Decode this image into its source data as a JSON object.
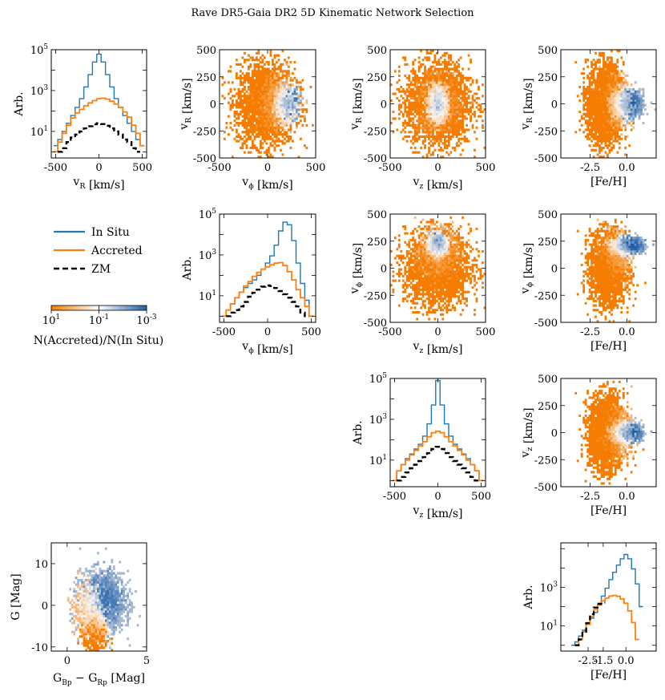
{
  "figure_title": "Rave DR5-Gaia DR2 5D Kinematic Network Selection",
  "colors": {
    "in_situ": "#1f77b4",
    "accreted": "#ff7f0e",
    "zm": "#000000",
    "colormap": [
      "#f57c00",
      "#ffffff",
      "#1f5fa8"
    ]
  },
  "legend": {
    "items": [
      {
        "label": "In Situ",
        "style": "in_situ"
      },
      {
        "label": "Accreted",
        "style": "accreted"
      },
      {
        "label": "ZM",
        "style": "zm"
      }
    ]
  },
  "colorbar": {
    "tick_labels": [
      "10^1",
      "10^-1",
      "10^-3"
    ],
    "tick_display": [
      {
        "base": "10",
        "exp": "1"
      },
      {
        "base": "10",
        "exp": "-1"
      },
      {
        "base": "10",
        "exp": "-3"
      }
    ],
    "label": "N(Accreted)/N(In Situ)"
  },
  "chart_data": [
    {
      "id": "hist_vR",
      "type": "histogram",
      "xlabel": "v_R [km/s]",
      "ylabel": "Arb.",
      "yscale": "log",
      "xlim": [
        -550,
        550
      ],
      "ylim": [
        0.5,
        100000
      ],
      "xticks": [
        -500,
        0,
        500
      ],
      "xtick_labels": [
        "-500",
        "0",
        "500"
      ],
      "ytick_labels": [
        "10^1",
        "10^3",
        "10^5"
      ],
      "series": [
        {
          "name": "In Situ",
          "x": [
            -500,
            -450,
            -400,
            -350,
            -300,
            -250,
            -200,
            -150,
            -100,
            -50,
            0,
            50,
            100,
            150,
            200,
            250,
            300,
            350,
            400,
            450,
            500
          ],
          "values": [
            2,
            4,
            10,
            25,
            60,
            150,
            400,
            1500,
            6000,
            25000,
            60000,
            25000,
            6000,
            1500,
            400,
            150,
            60,
            25,
            10,
            4,
            2
          ]
        },
        {
          "name": "Accreted",
          "x": [
            -500,
            -450,
            -400,
            -350,
            -300,
            -250,
            -200,
            -150,
            -100,
            -50,
            0,
            50,
            100,
            150,
            200,
            250,
            300,
            350,
            400,
            450,
            500
          ],
          "values": [
            1,
            3,
            8,
            20,
            45,
            80,
            120,
            180,
            250,
            320,
            400,
            420,
            380,
            300,
            220,
            150,
            90,
            50,
            20,
            8,
            2
          ]
        },
        {
          "name": "ZM",
          "x": [
            -450,
            -400,
            -350,
            -300,
            -250,
            -200,
            -150,
            -100,
            -50,
            0,
            50,
            100,
            150,
            200,
            250,
            300,
            350,
            400,
            450
          ],
          "values": [
            1,
            1.5,
            3,
            5,
            7,
            10,
            14,
            18,
            22,
            25,
            23,
            19,
            14,
            10,
            7,
            4,
            3,
            1.5,
            1
          ]
        }
      ]
    },
    {
      "id": "scatter_vR_vphi",
      "type": "heatmap",
      "xlabel": "v_phi [km/s]",
      "ylabel": "v_R [km/s]",
      "xlim": [
        -500,
        500
      ],
      "ylim": [
        -500,
        500
      ],
      "xtick_labels": [
        "-500",
        "0",
        "500"
      ],
      "ytick_labels": [
        "-500",
        "-250",
        "0",
        "250",
        "500"
      ],
      "clusters": [
        {
          "population": "accreted",
          "cx": -20,
          "cy": 0,
          "sx": 150,
          "sy": 190,
          "n": 900
        },
        {
          "population": "in_situ",
          "cx": 200,
          "cy": 0,
          "sx": 55,
          "sy": 70,
          "n": 600
        },
        {
          "population": "mixed",
          "cx": 80,
          "cy": 0,
          "sx": 90,
          "sy": 110,
          "n": 300
        }
      ]
    },
    {
      "id": "scatter_vR_vz",
      "type": "heatmap",
      "xlabel": "v_z [km/s]",
      "ylabel": "v_R [km/s]",
      "xlim": [
        -500,
        500
      ],
      "ylim": [
        -500,
        500
      ],
      "xtick_labels": [
        "-500",
        "0",
        "500"
      ],
      "ytick_labels": [
        "-500",
        "-250",
        "0",
        "250",
        "500"
      ],
      "clusters": [
        {
          "population": "accreted",
          "cx": 0,
          "cy": 0,
          "sx": 170,
          "sy": 190,
          "n": 900
        },
        {
          "population": "in_situ",
          "cx": 0,
          "cy": 0,
          "sx": 45,
          "sy": 70,
          "n": 600
        },
        {
          "population": "mixed",
          "cx": 0,
          "cy": 0,
          "sx": 100,
          "sy": 120,
          "n": 300
        }
      ]
    },
    {
      "id": "scatter_vR_feh",
      "type": "heatmap",
      "xlabel": "[Fe/H]",
      "ylabel": "v_R [km/s]",
      "xlim": [
        -4.5,
        2.0
      ],
      "ylim": [
        -500,
        500
      ],
      "xticks": [
        -2.5,
        0.0
      ],
      "xtick_labels": [
        "-2.5",
        "0.0"
      ],
      "ytick_labels": [
        "-500",
        "-250",
        "0",
        "250",
        "500"
      ],
      "clusters": [
        {
          "population": "accreted",
          "cx": -1.5,
          "cy": 0,
          "sx": 0.6,
          "sy": 180,
          "n": 900
        },
        {
          "population": "in_situ",
          "cx": 0.0,
          "cy": 0,
          "sx": 0.45,
          "sy": 60,
          "n": 600
        },
        {
          "population": "mixed",
          "cx": -0.7,
          "cy": 0,
          "sx": 0.5,
          "sy": 110,
          "n": 300
        }
      ]
    },
    {
      "id": "hist_vphi",
      "type": "histogram",
      "xlabel": "v_phi [km/s]",
      "ylabel": "Arb.",
      "yscale": "log",
      "xlim": [
        -550,
        550
      ],
      "ylim": [
        0.5,
        100000
      ],
      "xticks": [
        -500,
        0,
        500
      ],
      "xtick_labels": [
        "-500",
        "0",
        "500"
      ],
      "ytick_labels": [
        "10^1",
        "10^3",
        "10^5"
      ],
      "series": [
        {
          "name": "In Situ",
          "x": [
            -500,
            -450,
            -400,
            -350,
            -300,
            -250,
            -200,
            -150,
            -100,
            -50,
            0,
            50,
            100,
            150,
            200,
            250,
            300,
            350,
            400,
            450,
            500
          ],
          "values": [
            1,
            2,
            4,
            8,
            15,
            25,
            40,
            60,
            100,
            200,
            400,
            900,
            3000,
            15000,
            40000,
            30000,
            5000,
            400,
            40,
            6,
            1
          ]
        },
        {
          "name": "Accreted",
          "x": [
            -500,
            -450,
            -400,
            -350,
            -300,
            -250,
            -200,
            -150,
            -100,
            -50,
            0,
            50,
            100,
            150,
            200,
            250,
            300,
            350,
            400,
            450,
            500
          ],
          "values": [
            1,
            2,
            4,
            8,
            15,
            30,
            50,
            90,
            140,
            200,
            260,
            330,
            400,
            420,
            300,
            150,
            60,
            20,
            8,
            3,
            1
          ]
        },
        {
          "name": "ZM",
          "x": [
            -450,
            -400,
            -350,
            -300,
            -250,
            -200,
            -150,
            -100,
            -50,
            0,
            50,
            100,
            150,
            200,
            250,
            300,
            350,
            400,
            450
          ],
          "values": [
            1,
            1.5,
            2,
            3,
            5,
            9,
            14,
            20,
            28,
            32,
            30,
            24,
            17,
            12,
            8,
            5,
            3,
            1.5,
            1
          ]
        }
      ]
    },
    {
      "id": "scatter_vphi_vz",
      "type": "heatmap",
      "xlabel": "v_z [km/s]",
      "ylabel": "v_phi [km/s]",
      "xlim": [
        -500,
        500
      ],
      "ylim": [
        -500,
        500
      ],
      "xtick_labels": [
        "-500",
        "0",
        "500"
      ],
      "ytick_labels": [
        "-500",
        "-250",
        "0",
        "250",
        "500"
      ],
      "clusters": [
        {
          "population": "accreted",
          "cx": 0,
          "cy": 0,
          "sx": 170,
          "sy": 170,
          "n": 900
        },
        {
          "population": "in_situ",
          "cx": 0,
          "cy": 220,
          "sx": 45,
          "sy": 45,
          "n": 600
        },
        {
          "population": "mixed",
          "cx": 0,
          "cy": 120,
          "sx": 100,
          "sy": 110,
          "n": 300
        }
      ]
    },
    {
      "id": "scatter_vphi_feh",
      "type": "heatmap",
      "xlabel": "[Fe/H]",
      "ylabel": "v_phi [km/s]",
      "xlim": [
        -4.5,
        2.0
      ],
      "ylim": [
        -500,
        500
      ],
      "xticks": [
        -2.5,
        0.0
      ],
      "xtick_labels": [
        "-2.5",
        "0.0"
      ],
      "ytick_labels": [
        "-500",
        "-250",
        "0",
        "250",
        "500"
      ],
      "clusters": [
        {
          "population": "accreted",
          "cx": -1.3,
          "cy": 0,
          "sx": 0.6,
          "sy": 160,
          "n": 900
        },
        {
          "population": "in_situ",
          "cx": 0.0,
          "cy": 210,
          "sx": 0.5,
          "sy": 35,
          "n": 600
        },
        {
          "population": "mixed",
          "cx": -0.8,
          "cy": 120,
          "sx": 0.5,
          "sy": 100,
          "n": 300
        }
      ]
    },
    {
      "id": "hist_vz",
      "type": "histogram",
      "xlabel": "v_z [km/s]",
      "ylabel": "Arb.",
      "yscale": "log",
      "xlim": [
        -550,
        550
      ],
      "ylim": [
        0.5,
        100000
      ],
      "xticks": [
        -500,
        0,
        500
      ],
      "xtick_labels": [
        "-500",
        "0",
        "500"
      ],
      "ytick_labels": [
        "10^1",
        "10^3",
        "10^5"
      ],
      "series": [
        {
          "name": "In Situ",
          "x": [
            -500,
            -450,
            -400,
            -350,
            -300,
            -250,
            -200,
            -150,
            -100,
            -50,
            0,
            50,
            100,
            150,
            200,
            250,
            300,
            350,
            400,
            450,
            500
          ],
          "values": [
            1,
            3,
            6,
            12,
            20,
            35,
            60,
            150,
            600,
            5000,
            80000,
            5000,
            600,
            150,
            60,
            35,
            20,
            12,
            6,
            3,
            1
          ]
        },
        {
          "name": "Accreted",
          "x": [
            -500,
            -450,
            -400,
            -350,
            -300,
            -250,
            -200,
            -150,
            -100,
            -50,
            0,
            50,
            100,
            150,
            200,
            250,
            300,
            350,
            400,
            450,
            500
          ],
          "values": [
            1,
            3,
            6,
            10,
            18,
            30,
            50,
            80,
            140,
            220,
            260,
            220,
            140,
            80,
            50,
            30,
            18,
            10,
            6,
            3,
            1
          ]
        },
        {
          "name": "ZM",
          "x": [
            -450,
            -400,
            -350,
            -300,
            -250,
            -200,
            -150,
            -100,
            -50,
            0,
            50,
            100,
            150,
            200,
            250,
            300,
            350,
            400,
            450
          ],
          "values": [
            1,
            1.5,
            2.5,
            4,
            6,
            9,
            14,
            22,
            35,
            45,
            35,
            22,
            14,
            9,
            6,
            4,
            2.5,
            1.5,
            1
          ]
        }
      ]
    },
    {
      "id": "scatter_vz_feh",
      "type": "heatmap",
      "xlabel": "[Fe/H]",
      "ylabel": "v_z [km/s]",
      "xlim": [
        -4.5,
        2.0
      ],
      "ylim": [
        -500,
        500
      ],
      "xticks": [
        -2.5,
        0.0
      ],
      "xtick_labels": [
        "-2.5",
        "0.0"
      ],
      "ytick_labels": [
        "-500",
        "-250",
        "0",
        "250",
        "500"
      ],
      "clusters": [
        {
          "population": "accreted",
          "cx": -1.4,
          "cy": 0,
          "sx": 0.6,
          "sy": 170,
          "n": 900
        },
        {
          "population": "in_situ",
          "cx": 0.0,
          "cy": 0,
          "sx": 0.45,
          "sy": 40,
          "n": 600
        },
        {
          "population": "mixed",
          "cx": -0.7,
          "cy": 0,
          "sx": 0.5,
          "sy": 100,
          "n": 300
        }
      ]
    },
    {
      "id": "cmd",
      "type": "heatmap",
      "xlabel": "G_Bp - G_Rp [Mag]",
      "ylabel": "G [Mag]",
      "yinverted": true,
      "xlim": [
        -1,
        5
      ],
      "ylim": [
        15,
        -11
      ],
      "xticks": [
        0,
        5
      ],
      "xtick_labels": [
        "0",
        "5"
      ],
      "yticks": [
        -10,
        0,
        10
      ],
      "ytick_labels": [
        "-10",
        "0",
        "10"
      ],
      "clusters": [
        {
          "population": "accreted",
          "cx": 1.8,
          "cy": -6,
          "sx": 0.35,
          "sy": 2.2,
          "n": 300
        },
        {
          "population": "in_situ",
          "cx": 2.2,
          "cy": 1,
          "sx": 0.7,
          "sy": 3.5,
          "n": 700
        },
        {
          "population": "mixed",
          "cx": 1.3,
          "cy": -1,
          "sx": 0.4,
          "sy": 3.0,
          "n": 300
        }
      ]
    },
    {
      "id": "hist_feh",
      "type": "histogram",
      "xlabel": "[Fe/H]",
      "ylabel": "Arb.",
      "yscale": "log",
      "xlim": [
        -4.3,
        2.0
      ],
      "ylim": [
        0.5,
        200000
      ],
      "xticks": [
        -2.5,
        -1.5,
        0.0
      ],
      "xtick_labels": [
        "-2.5",
        "-1.5",
        "0.0"
      ],
      "ytick_labels": [
        "10^1",
        "10^3"
      ],
      "series": [
        {
          "name": "In Situ",
          "x": [
            -3.5,
            -3.25,
            -3.0,
            -2.75,
            -2.5,
            -2.25,
            -2.0,
            -1.75,
            -1.5,
            -1.25,
            -1.0,
            -0.75,
            -0.5,
            -0.25,
            0.0,
            0.25,
            0.5,
            0.75,
            1.0
          ],
          "values": [
            1,
            1.5,
            3,
            6,
            12,
            25,
            50,
            120,
            350,
            900,
            2500,
            6000,
            14000,
            30000,
            50000,
            30000,
            9000,
            1500,
            100
          ]
        },
        {
          "name": "Accreted",
          "x": [
            -3.5,
            -3.25,
            -3.0,
            -2.75,
            -2.5,
            -2.25,
            -2.0,
            -1.75,
            -1.5,
            -1.25,
            -1.0,
            -0.75,
            -0.5,
            -0.25,
            0.0,
            0.25,
            0.5,
            0.75,
            1.0
          ],
          "values": [
            0,
            1,
            2,
            5,
            12,
            30,
            70,
            130,
            200,
            280,
            350,
            380,
            340,
            250,
            150,
            60,
            15,
            2,
            0
          ]
        },
        {
          "name": "ZM",
          "x": [
            -3.25,
            -3.0,
            -2.75,
            -2.5,
            -2.25,
            -2.0,
            -1.75,
            -1.5
          ],
          "values": [
            1,
            2,
            5,
            14,
            40,
            90,
            140,
            160
          ]
        }
      ]
    }
  ]
}
